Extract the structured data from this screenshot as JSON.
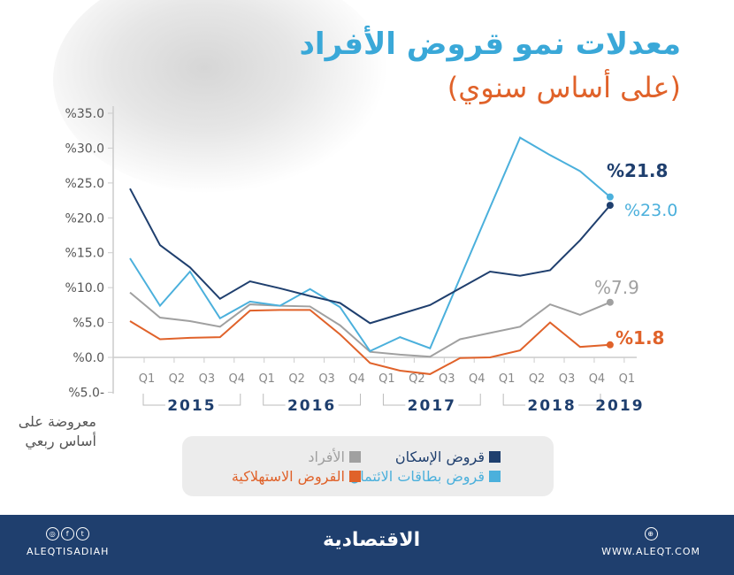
{
  "header": {
    "title": "معدلات نمو قروض الأفراد",
    "subtitle": "(على أساس سنوي)"
  },
  "note": "معروضة على أساس ربعي",
  "chart_data": {
    "type": "line",
    "title": "معدلات نمو قروض الأفراد",
    "subtitle": "(على أساس سنوي)",
    "ylim": [
      -5,
      35
    ],
    "yticks": [
      "%5.0-",
      "%0.0",
      "%5.0",
      "%10.0",
      "%15.0",
      "%20.0",
      "%25.0",
      "%30.0",
      "%35.0"
    ],
    "ytick_values": [
      -5,
      0,
      5,
      10,
      15,
      20,
      25,
      30,
      35
    ],
    "quarter_labels": [
      "Q1",
      "Q2",
      "Q3",
      "Q4",
      "Q1",
      "Q2",
      "Q3",
      "Q4",
      "Q1",
      "Q2",
      "Q3",
      "Q4",
      "Q1",
      "Q2",
      "Q3",
      "Q4",
      "Q1"
    ],
    "years": [
      {
        "label": "2015",
        "span": [
          0,
          3
        ]
      },
      {
        "label": "2016",
        "span": [
          4,
          7
        ]
      },
      {
        "label": "2017",
        "span": [
          8,
          11
        ]
      },
      {
        "label": "2018",
        "span": [
          12,
          15
        ]
      },
      {
        "label": "2019",
        "span": [
          16,
          16
        ]
      }
    ],
    "grid": false,
    "legend_placement": "bottom",
    "series": [
      {
        "name": "قروض الإسكان",
        "color": "#1f3f6e",
        "values": [
          24.2,
          16.1,
          12.9,
          8.4,
          10.9,
          9.9,
          8.8,
          7.8,
          4.9,
          6.2,
          7.5,
          9.9,
          12.3,
          11.7,
          12.5,
          16.8,
          21.8
        ],
        "end_label": "%21.8"
      },
      {
        "name": "قروض بطاقات الائتمان",
        "color": "#4bb0dc",
        "values": [
          14.2,
          7.4,
          12.3,
          5.6,
          8.0,
          7.4,
          9.8,
          7.2,
          0.9,
          2.9,
          1.3,
          11.4,
          21.5,
          31.5,
          29.0,
          26.7,
          23.0
        ],
        "end_label": "%23.0"
      },
      {
        "name": "الأفراد",
        "color": "#a0a0a0",
        "values": [
          9.3,
          5.7,
          5.2,
          4.4,
          7.6,
          7.4,
          7.3,
          4.6,
          0.8,
          0.4,
          0.1,
          2.6,
          3.5,
          4.4,
          7.6,
          6.1,
          7.9
        ],
        "end_label": "%7.9"
      },
      {
        "name": "القروض الاستهلاكية",
        "color": "#e0622a",
        "values": [
          5.2,
          2.6,
          2.8,
          2.9,
          6.7,
          6.8,
          6.8,
          3.3,
          -0.8,
          -1.9,
          -2.4,
          -0.1,
          0.0,
          1.0,
          5.0,
          1.5,
          1.8
        ],
        "end_label": "%1.8"
      }
    ]
  },
  "footer": {
    "handle": "ALEQTISADIAH",
    "logo": "الاقتصادية",
    "website": "WWW.ALEQT.COM",
    "social_icons": [
      "instagram-icon",
      "facebook-icon",
      "twitter-icon"
    ],
    "web_icon": "globe-icon",
    "colors": {
      "background": "#1f3f6e"
    }
  }
}
